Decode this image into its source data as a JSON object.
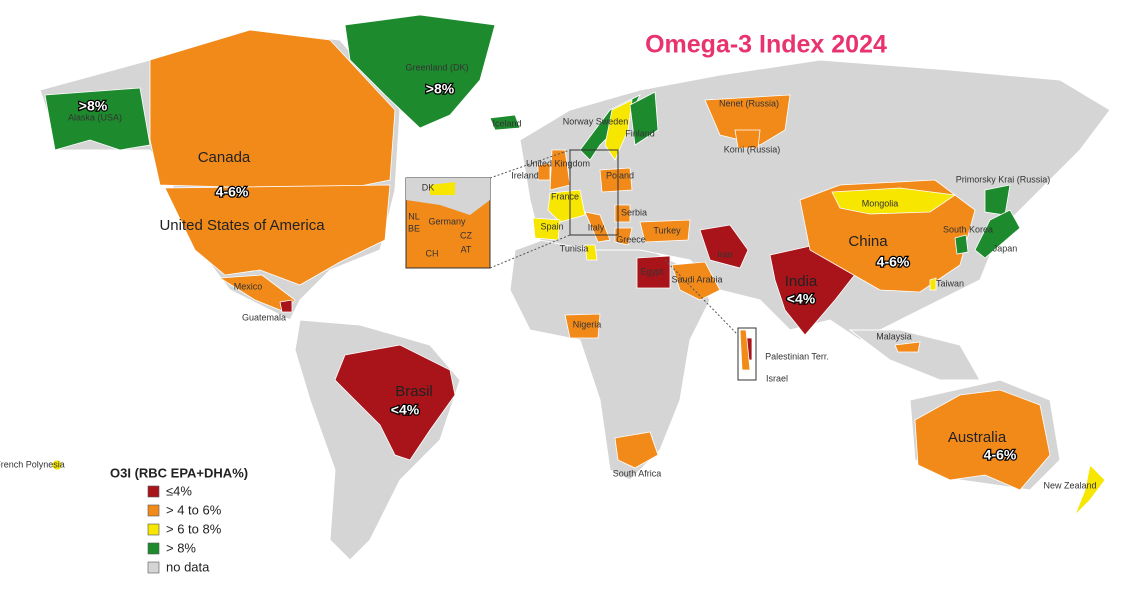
{
  "title": "Omega-3 Index 2024",
  "legend": {
    "title": "O3I (RBC EPA+DHA%)",
    "items": [
      {
        "label": "≤4%",
        "color": "#a8141a"
      },
      {
        "label": "> 4 to 6%",
        "color": "#f28a1a"
      },
      {
        "label": "> 6 to 8%",
        "color": "#f7e600"
      },
      {
        "label": "> 8%",
        "color": "#1e8a2e"
      },
      {
        "label": "no data",
        "color": "#d5d5d5"
      }
    ]
  },
  "regions": [
    {
      "label": "Alaska (USA)",
      "value_label": ">8%",
      "category": 3
    },
    {
      "label": "Canada",
      "value_label": "4-6%",
      "category": 1
    },
    {
      "label": "United States of America",
      "category": 1
    },
    {
      "label": "Greenland (DK)",
      "value_label": ">8%",
      "category": 3
    },
    {
      "label": "Iceland",
      "category": 3
    },
    {
      "label": "Mexico",
      "category": 1
    },
    {
      "label": "Guatemala",
      "category": 0
    },
    {
      "label": "Brasil",
      "value_label": "<4%",
      "category": 0
    },
    {
      "label": "Norway",
      "category": 3
    },
    {
      "label": "Sweden",
      "category": 2
    },
    {
      "label": "Finland",
      "category": 3
    },
    {
      "label": "United Kingdom",
      "category": 1
    },
    {
      "label": "Ireland",
      "category": 1
    },
    {
      "label": "Poland",
      "category": 1
    },
    {
      "label": "France",
      "category": 2
    },
    {
      "label": "Spain",
      "category": 2
    },
    {
      "label": "Italy",
      "category": 1
    },
    {
      "label": "Serbia",
      "category": 1
    },
    {
      "label": "Greece",
      "category": 1
    },
    {
      "label": "Tunisia",
      "category": 2
    },
    {
      "label": "Turkey",
      "category": 1
    },
    {
      "label": "Nenet (Russia)",
      "category": 1
    },
    {
      "label": "Komi (Russia)",
      "category": 1
    },
    {
      "label": "Iran",
      "category": 0
    },
    {
      "label": "Egypt",
      "category": 0
    },
    {
      "label": "Saudi Arabia",
      "category": 1
    },
    {
      "label": "Nigeria",
      "category": 1
    },
    {
      "label": "South Africa",
      "category": 1
    },
    {
      "label": "India",
      "value_label": "<4%",
      "category": 0
    },
    {
      "label": "China",
      "value_label": "4-6%",
      "category": 1
    },
    {
      "label": "Mongolia",
      "category": 2
    },
    {
      "label": "Primorsky Krai (Russia)",
      "category": 3
    },
    {
      "label": "South Korea",
      "category": 3
    },
    {
      "label": "Japan",
      "category": 3
    },
    {
      "label": "Taiwan",
      "category": 2
    },
    {
      "label": "Malaysia",
      "category": 1
    },
    {
      "label": "Palestinian Terr.",
      "category": 0
    },
    {
      "label": "Israel",
      "category": 1
    },
    {
      "label": "Australia",
      "value_label": "4-6%",
      "category": 1
    },
    {
      "label": "New Zealand",
      "category": 2
    },
    {
      "label": "French Polynesia",
      "category": 2
    }
  ],
  "inset_labels": [
    "DK",
    "NL",
    "BE",
    "Germany",
    "CZ",
    "AT",
    "CH"
  ]
}
